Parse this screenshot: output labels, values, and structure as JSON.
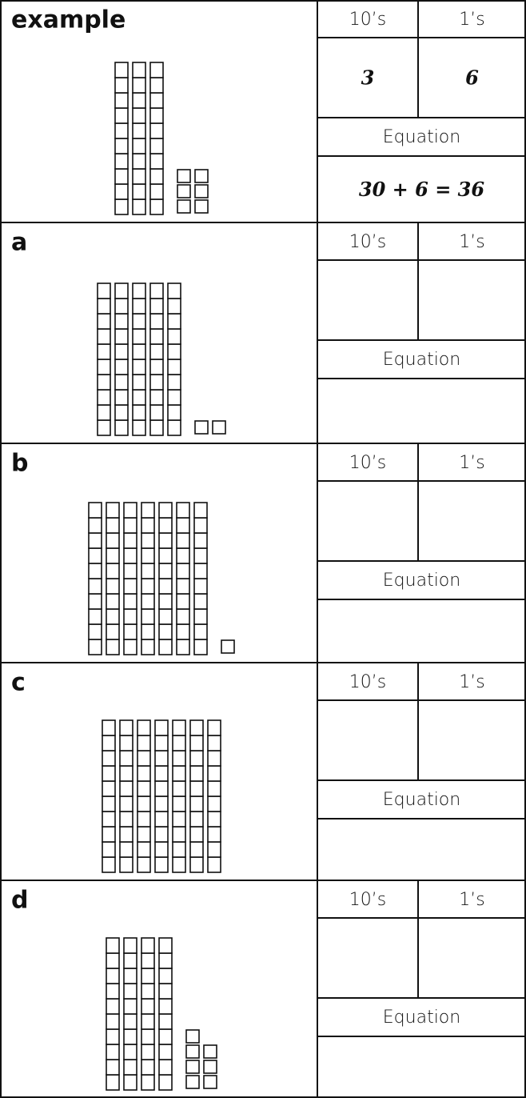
{
  "headers": {
    "tens": "10’s",
    "ones": "1’s",
    "equation": "Equation"
  },
  "rows": [
    {
      "label": "example",
      "tens": 3,
      "ones": 6,
      "answer_tens": "3",
      "answer_ones": "6",
      "equation": "30 + 6 = 36"
    },
    {
      "label": "a",
      "tens": 5,
      "ones": 2
    },
    {
      "label": "b",
      "tens": 7,
      "ones": 1
    },
    {
      "label": "c",
      "tens": 7,
      "ones": 0
    },
    {
      "label": "d",
      "tens": 4,
      "ones": 7
    }
  ]
}
